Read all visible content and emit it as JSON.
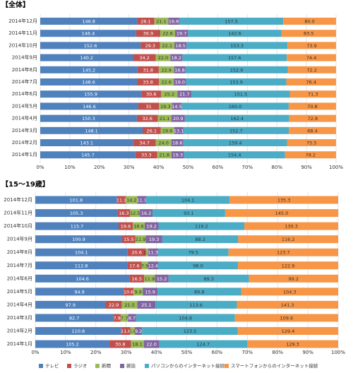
{
  "chart_data": [
    {
      "type": "bar",
      "orientation": "horizontal",
      "stacking": "percent",
      "title": "【全体】",
      "categories": [
        "2014年12月",
        "2014年11月",
        "2014年10月",
        "2014年9月",
        "2014年8月",
        "2014年7月",
        "2014年6月",
        "2014年5月",
        "2014年4月",
        "2014年3月",
        "2014年2月",
        "2014年1月"
      ],
      "series": [
        {
          "color": "#4f81bd",
          "values": [
            146.8,
            146.4,
            152.6,
            140.2,
            145.2,
            148.6,
            155.9,
            146.6,
            150.3,
            148.1,
            143.1,
            145.7
          ]
        },
        {
          "color": "#c0504d",
          "values": [
            26.1,
            36.9,
            29.3,
            34.2,
            31.8,
            33.8,
            30.6,
            31.0,
            32.6,
            26.1,
            34.7,
            33.3
          ]
        },
        {
          "color": "#9bbb59",
          "values": [
            21.1,
            22.6,
            22.1,
            22.0,
            22.9,
            22.6,
            25.2,
            19.3,
            21.1,
            19.6,
            24.0,
            21.8
          ],
          "value_labels": [
            "21.1",
            "22.6",
            "22.1",
            "22.0",
            "22.9",
            "22.6",
            "25.2",
            "19.3",
            "21.1",
            "19.6",
            "24.0",
            "21.8"
          ]
        },
        {
          "color": "#8064a2",
          "values": [
            16.6,
            19.7,
            18.5,
            18.2,
            16.8,
            19.0,
            21.7,
            14.5,
            20.9,
            13.1,
            18.6,
            19.3
          ],
          "value_labels": [
            "16.6",
            "19.7",
            "18.5",
            "18.2",
            "16.8",
            "19.0",
            "21.7",
            "14.5",
            "20.9",
            "13.1",
            "18.6",
            "19.3"
          ]
        },
        {
          "color": "#4bacc6",
          "values": [
            157.5,
            142.6,
            153.3,
            157.6,
            152.9,
            153.9,
            151.5,
            160.0,
            162.4,
            152.7,
            159.4,
            154.4
          ],
          "value_labels": [
            "157.5",
            "142.6",
            "153.3",
            "157.6",
            "152.9",
            "153.9",
            "151.5",
            "160.0",
            "162.4",
            "152.7",
            "159.4",
            "154.4"
          ]
        },
        {
          "color": "#f79646",
          "values": [
            80.0,
            83.5,
            73.9,
            74.4,
            72.2,
            76.4,
            71.3,
            70.8,
            72.8,
            68.4,
            75.5,
            78.2
          ],
          "value_labels": [
            "80.0",
            "83.5",
            "73.9",
            "74.4",
            "72.2",
            "76.4",
            "71.3",
            "70.8",
            "72.8",
            "68.4",
            "75.5",
            "78.2"
          ]
        }
      ],
      "xlim": [
        0,
        100
      ],
      "xticks": [
        {
          "value": 0,
          "label": "0%"
        },
        {
          "value": 10,
          "label": "10%"
        },
        {
          "value": 20,
          "label": "20%"
        },
        {
          "value": 30,
          "label": "30%"
        },
        {
          "value": 40,
          "label": "40%"
        },
        {
          "value": 50,
          "label": "50%"
        },
        {
          "value": 60,
          "label": "60%"
        },
        {
          "value": 70,
          "label": "70%"
        },
        {
          "value": 80,
          "label": "80%"
        },
        {
          "value": 90,
          "label": "90%"
        },
        {
          "value": 100,
          "label": "100%"
        }
      ],
      "grid": true
    },
    {
      "type": "bar",
      "orientation": "horizontal",
      "stacking": "percent",
      "title": "【15〜19歳】",
      "categories": [
        "2014年12月",
        "2014年11月",
        "2014年10月",
        "2014年9月",
        "2014年8月",
        "2014年7月",
        "2014年6月",
        "2014年5月",
        "2014年4月",
        "2014年3月",
        "2014年2月",
        "2014年1月"
      ],
      "series": [
        {
          "name": "テレビ",
          "color": "#4f81bd",
          "values": [
            101.8,
            105.3,
            115.7,
            100.9,
            104.1,
            112.8,
            104.6,
            94.9,
            97.9,
            82.7,
            110.8,
            105.2
          ]
        },
        {
          "name": "ラジオ",
          "color": "#c0504d",
          "values": [
            11.1,
            16.3,
            19.6,
            15.5,
            20.6,
            17.6,
            16.5,
            10.6,
            22.9,
            7.9,
            11.8,
            30.8
          ]
        },
        {
          "name": "新聞",
          "color": "#9bbb59",
          "values": [
            14.2,
            12.5,
            16.6,
            11.9,
            2.5,
            7.9,
            11.9,
            9.9,
            21.5,
            7.7,
            5.8,
            18.1
          ]
        },
        {
          "name": "雑誌",
          "color": "#8064a2",
          "values": [
            11.1,
            16.2,
            19.2,
            19.3,
            11.3,
            12.4,
            15.2,
            15.9,
            25.1,
            8.7,
            9.2,
            22.0
          ],
          "value_labels": [
            "11.1",
            "16.2",
            "19.2",
            "19.3",
            "11.3",
            "12.4",
            "15.2",
            "15.9",
            "25.1",
            "8.7",
            "9.2",
            "22.0"
          ]
        },
        {
          "name": "パソコンからのインターネット接続",
          "color": "#4bacc6",
          "values": [
            104.1,
            93.1,
            119.2,
            88.2,
            79.5,
            98.0,
            89.3,
            89.8,
            113.6,
            104.8,
            123.5,
            124.7
          ],
          "value_labels": [
            "104.1",
            "93.1",
            "119.2",
            "88.2",
            "79.5",
            "98.0",
            "89.3",
            "89.8",
            "113.6",
            "104.8",
            "123.5",
            "124.7"
          ]
        },
        {
          "name": "スマートフォンからのインターネット接続",
          "color": "#f79646",
          "values": [
            135.3,
            145.0,
            130.3,
            116.2,
            123.7,
            122.9,
            99.2,
            104.3,
            141.3,
            109.6,
            129.4,
            129.3
          ],
          "value_labels": [
            "135.3",
            "145.0",
            "130.3",
            "116.2",
            "123.7",
            "122.9",
            "99.2",
            "104.3",
            "141.3",
            "109.6",
            "129.4",
            "129.3"
          ]
        }
      ],
      "xlim": [
        0,
        100
      ],
      "xticks": [
        {
          "value": 0,
          "label": "0%"
        },
        {
          "value": 10,
          "label": "10%"
        },
        {
          "value": 20,
          "label": "20%"
        },
        {
          "value": 30,
          "label": "30%"
        },
        {
          "value": 40,
          "label": "40%"
        },
        {
          "value": 50,
          "label": "50%"
        },
        {
          "value": 60,
          "label": "60%"
        },
        {
          "value": 70,
          "label": "70%"
        },
        {
          "value": 80,
          "label": "80%"
        },
        {
          "value": 90,
          "label": "90%"
        },
        {
          "value": 100,
          "label": "100%"
        }
      ],
      "grid": true,
      "legend": "bottom"
    }
  ]
}
